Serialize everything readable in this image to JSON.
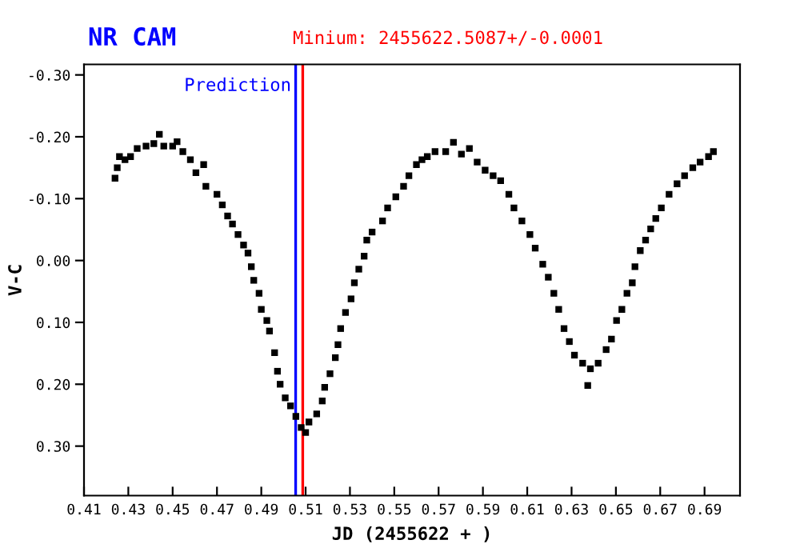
{
  "chart_data": {
    "type": "scatter",
    "title": "NR CAM",
    "subtitle": "Minium: 2455622.5087+/-0.0001",
    "xlabel": "JD (2455622 + )",
    "ylabel": "V-C",
    "marker": "square",
    "grid": false,
    "legend": false,
    "series": [
      {
        "color": "#000000",
        "x": [
          0.424,
          0.425,
          0.426,
          0.4285,
          0.431,
          0.434,
          0.438,
          0.4415,
          0.444,
          0.446,
          0.45,
          0.452,
          0.4546,
          0.458,
          0.4605,
          0.464,
          0.465,
          0.47,
          0.4724,
          0.4748,
          0.477,
          0.4795,
          0.482,
          0.484,
          0.4855,
          0.4866,
          0.489,
          0.49,
          0.4925,
          0.4937,
          0.496,
          0.4973,
          0.4985,
          0.5008,
          0.5032,
          0.5056,
          0.508,
          0.51,
          0.5115,
          0.515,
          0.5175,
          0.5186,
          0.521,
          0.5234,
          0.5246,
          0.5258,
          0.528,
          0.5305,
          0.532,
          0.534,
          0.5364,
          0.5376,
          0.54,
          0.5447,
          0.547,
          0.5507,
          0.5542,
          0.5566,
          0.56,
          0.5625,
          0.5649,
          0.5684,
          0.5732,
          0.5767,
          0.5803,
          0.5839,
          0.5874,
          0.591,
          0.5946,
          0.598,
          0.6017,
          0.604,
          0.6076,
          0.6112,
          0.6136,
          0.617,
          0.6195,
          0.622,
          0.6242,
          0.6266,
          0.629,
          0.6313,
          0.635,
          0.6373,
          0.6385,
          0.642,
          0.6456,
          0.648,
          0.6503,
          0.6527,
          0.655,
          0.6574,
          0.6586,
          0.661,
          0.6634,
          0.6657,
          0.668,
          0.6705,
          0.674,
          0.6776,
          0.681,
          0.6847,
          0.688,
          0.6918,
          0.694
        ],
        "values": [
          -0.133,
          -0.15,
          -0.168,
          -0.163,
          -0.168,
          -0.181,
          -0.185,
          -0.189,
          -0.204,
          -0.185,
          -0.185,
          -0.192,
          -0.176,
          -0.163,
          -0.142,
          -0.155,
          -0.12,
          -0.107,
          -0.09,
          -0.072,
          -0.059,
          -0.042,
          -0.025,
          -0.012,
          0.01,
          0.032,
          0.053,
          0.079,
          0.097,
          0.114,
          0.149,
          0.179,
          0.2,
          0.222,
          0.235,
          0.252,
          0.27,
          0.278,
          0.261,
          0.248,
          0.227,
          0.205,
          0.183,
          0.157,
          0.136,
          0.11,
          0.084,
          0.062,
          0.036,
          0.014,
          -0.007,
          -0.033,
          -0.046,
          -0.064,
          -0.085,
          -0.103,
          -0.12,
          -0.137,
          -0.155,
          -0.163,
          -0.168,
          -0.176,
          -0.176,
          -0.191,
          -0.172,
          -0.181,
          -0.159,
          -0.146,
          -0.137,
          -0.129,
          -0.107,
          -0.085,
          -0.064,
          -0.042,
          -0.02,
          0.006,
          0.027,
          0.053,
          0.079,
          0.11,
          0.131,
          0.153,
          0.166,
          0.202,
          0.175,
          0.166,
          0.144,
          0.127,
          0.097,
          0.079,
          0.053,
          0.036,
          0.01,
          -0.016,
          -0.033,
          -0.051,
          -0.068,
          -0.085,
          -0.107,
          -0.124,
          -0.137,
          -0.15,
          -0.159,
          -0.168,
          -0.176
        ]
      }
    ],
    "xlim": [
      0.41,
      0.706
    ],
    "xticks": [
      0.41,
      0.43,
      0.45,
      0.47,
      0.49,
      0.51,
      0.53,
      0.55,
      0.57,
      0.59,
      0.61,
      0.63,
      0.65,
      0.67,
      0.69
    ],
    "ylim": [
      0.38,
      -0.317
    ],
    "yticks": [
      {
        "value": -0.3,
        "label": "-0.30"
      },
      {
        "value": -0.2,
        "label": "-0.20"
      },
      {
        "value": -0.1,
        "label": "-0.10"
      },
      {
        "value": 0,
        "label": "0.00"
      },
      {
        "value": 0.1,
        "label": "0.10"
      },
      {
        "value": 0.2,
        "label": "0.20"
      },
      {
        "value": 0.3,
        "label": "0.30"
      }
    ],
    "ref_lines": [
      {
        "axis": "x",
        "value": 0.5055,
        "label": "Prediction",
        "color": "#0000ff"
      },
      {
        "axis": "x",
        "value": 0.5087,
        "color": "#ff0000"
      }
    ]
  }
}
